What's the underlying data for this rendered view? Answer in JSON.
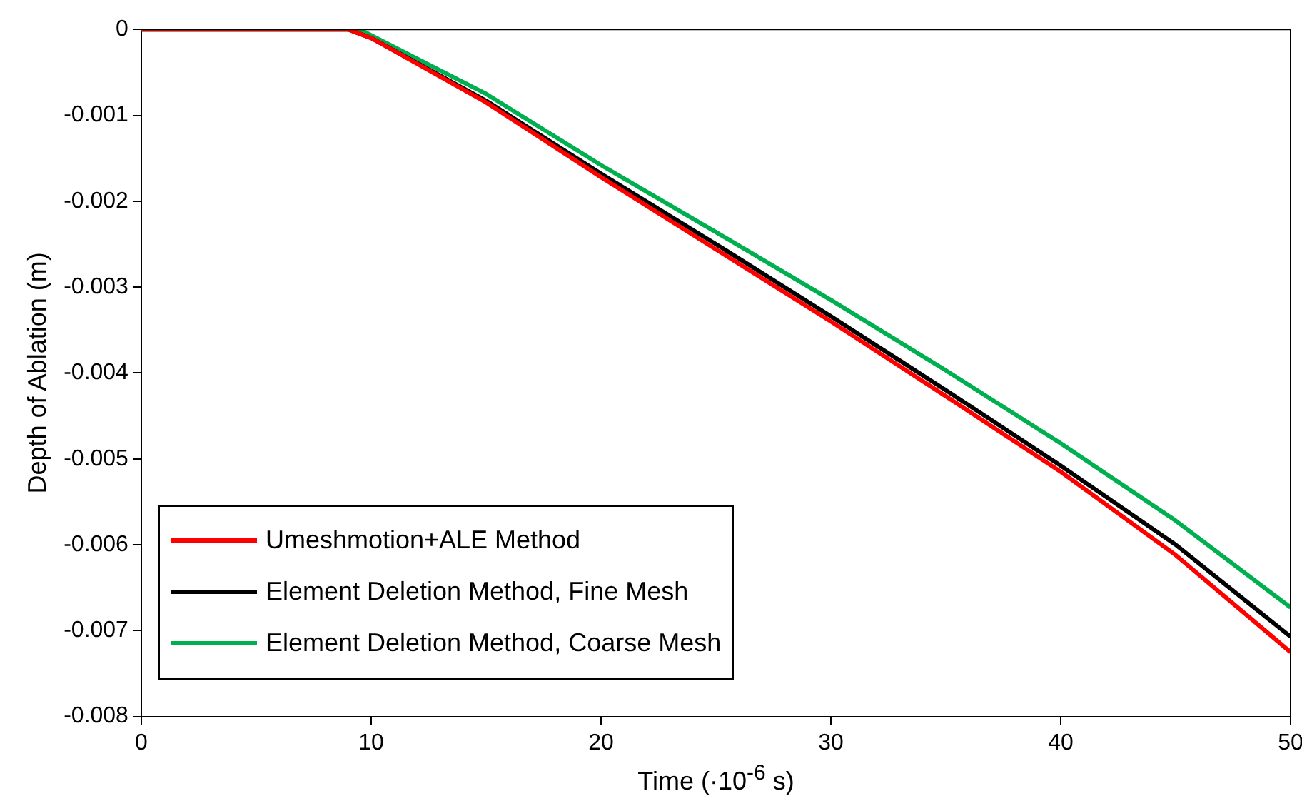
{
  "chart_data": {
    "type": "line",
    "xlabel": "Time (·10$^{-6}$ s)",
    "ylabel": "Depth of Ablation (m)",
    "xlim": [
      0,
      50
    ],
    "xticks": [
      0,
      10,
      20,
      30,
      40,
      50
    ],
    "ylim": [
      -0.008,
      0
    ],
    "yticks": [
      -0.008,
      -0.007,
      -0.006,
      -0.005,
      -0.004,
      -0.003,
      -0.002,
      -0.001,
      0
    ],
    "grid": false,
    "legend": "bottom left",
    "marker": "none",
    "line_style": "solid",
    "series": [
      {
        "name": "Umeshmotion+ALE Method",
        "color": "#ff0000",
        "x": [
          0,
          9,
          10,
          15,
          20,
          25,
          30,
          35,
          40,
          45,
          50
        ],
        "values": [
          0,
          0,
          -0.0001,
          -0.00085,
          -0.00172,
          -0.00256,
          -0.0034,
          -0.00427,
          -0.00515,
          -0.00612,
          -0.00725
        ]
      },
      {
        "name": "Element Deletion Method, Fine Mesh",
        "color": "#000000",
        "x": [
          0,
          9,
          10,
          15,
          20,
          25,
          30,
          35,
          40,
          45,
          50
        ],
        "values": [
          0,
          0,
          -0.0001,
          -0.00083,
          -0.00168,
          -0.0025,
          -0.00334,
          -0.0042,
          -0.00508,
          -0.006,
          -0.00707
        ]
      },
      {
        "name": "Element Deletion Method, Coarse Mesh",
        "color": "#00b050",
        "x": [
          0,
          9.5,
          15,
          20,
          25,
          30,
          35,
          40,
          45,
          50
        ],
        "values": [
          0,
          0,
          -0.00075,
          -0.00158,
          -0.00236,
          -0.00315,
          -0.00397,
          -0.00482,
          -0.00572,
          -0.00673
        ]
      }
    ]
  }
}
